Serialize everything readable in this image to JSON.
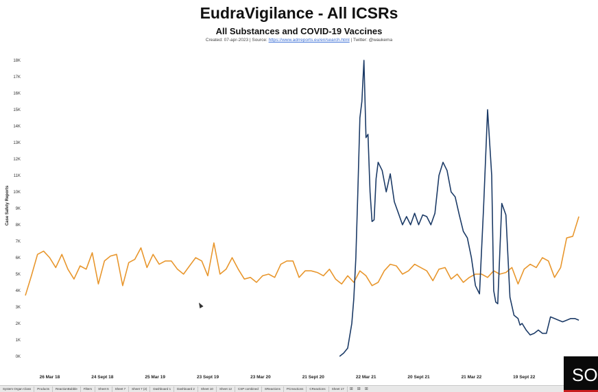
{
  "chart_data": {
    "type": "line",
    "title": "EudraVigilance - All ICSRs",
    "subtitle": "All Substances and COVID-19 Vaccines",
    "credits": {
      "prefix": "Created: 07-apr-2023 | Source: ",
      "link_text": "https://www.adrreports.eu/en/search.html",
      "suffix": " | Twitter: @waukema"
    },
    "ylabel": "Case Safety Reports",
    "xlabel": "",
    "ylim": [
      0,
      18000
    ],
    "y_ticks": [
      {
        "value": 0,
        "label": "0K"
      },
      {
        "value": 1000,
        "label": "1K"
      },
      {
        "value": 2000,
        "label": "2K"
      },
      {
        "value": 3000,
        "label": "3K"
      },
      {
        "value": 4000,
        "label": "4K"
      },
      {
        "value": 5000,
        "label": "5K"
      },
      {
        "value": 6000,
        "label": "6K"
      },
      {
        "value": 7000,
        "label": "7K"
      },
      {
        "value": 8000,
        "label": "8K"
      },
      {
        "value": 9000,
        "label": "9K"
      },
      {
        "value": 10000,
        "label": "10K"
      },
      {
        "value": 11000,
        "label": "11K"
      },
      {
        "value": 12000,
        "label": "12K"
      },
      {
        "value": 13000,
        "label": "13K"
      },
      {
        "value": 14000,
        "label": "14K"
      },
      {
        "value": 15000,
        "label": "15K"
      },
      {
        "value": 16000,
        "label": "16K"
      },
      {
        "value": 17000,
        "label": "17K"
      },
      {
        "value": 18000,
        "label": "18K"
      }
    ],
    "x_range": [
      "2017-12-25",
      "2023-04-10"
    ],
    "x_ticks": [
      {
        "date": "2018-03-26",
        "label": "26 Mar 18"
      },
      {
        "date": "2018-09-24",
        "label": "24 Sept 18"
      },
      {
        "date": "2019-03-25",
        "label": "25 Mar 19"
      },
      {
        "date": "2019-09-23",
        "label": "23 Sept 19"
      },
      {
        "date": "2020-03-23",
        "label": "23 Mar 20"
      },
      {
        "date": "2020-09-21",
        "label": "21 Sept 20"
      },
      {
        "date": "2021-03-22",
        "label": "22 Mar 21"
      },
      {
        "date": "2021-09-20",
        "label": "20 Sept 21"
      },
      {
        "date": "2022-03-21",
        "label": "21 Mar 22"
      },
      {
        "date": "2022-09-19",
        "label": "19 Sept 22"
      }
    ],
    "grid": false,
    "legend": "none",
    "series": [
      {
        "color": "#e8962c",
        "x": [
          "2018-01-01",
          "2018-01-22",
          "2018-02-12",
          "2018-03-05",
          "2018-03-26",
          "2018-04-16",
          "2018-05-07",
          "2018-05-28",
          "2018-06-18",
          "2018-07-09",
          "2018-07-30",
          "2018-08-20",
          "2018-09-10",
          "2018-10-01",
          "2018-10-22",
          "2018-11-12",
          "2018-12-03",
          "2018-12-24",
          "2019-01-14",
          "2019-02-04",
          "2019-02-25",
          "2019-03-18",
          "2019-04-08",
          "2019-04-29",
          "2019-05-20",
          "2019-06-10",
          "2019-07-01",
          "2019-07-22",
          "2019-08-12",
          "2019-09-02",
          "2019-09-23",
          "2019-10-14",
          "2019-11-04",
          "2019-11-25",
          "2019-12-16",
          "2020-01-06",
          "2020-01-27",
          "2020-02-17",
          "2020-03-09",
          "2020-03-30",
          "2020-04-20",
          "2020-05-11",
          "2020-06-01",
          "2020-06-22",
          "2020-07-13",
          "2020-08-03",
          "2020-08-24",
          "2020-09-14",
          "2020-10-05",
          "2020-10-26",
          "2020-11-16",
          "2020-12-07",
          "2020-12-28",
          "2021-01-18",
          "2021-02-08",
          "2021-03-01",
          "2021-03-22",
          "2021-04-12",
          "2021-05-03",
          "2021-05-24",
          "2021-06-14",
          "2021-07-05",
          "2021-07-26",
          "2021-08-16",
          "2021-09-06",
          "2021-09-27",
          "2021-10-18",
          "2021-11-08",
          "2021-11-29",
          "2021-12-20",
          "2022-01-10",
          "2022-01-31",
          "2022-02-21",
          "2022-03-14",
          "2022-04-04",
          "2022-04-25",
          "2022-05-16",
          "2022-06-06",
          "2022-06-27",
          "2022-07-18",
          "2022-08-08",
          "2022-08-29",
          "2022-09-19",
          "2022-10-10",
          "2022-10-31",
          "2022-11-21",
          "2022-12-12",
          "2023-01-02",
          "2023-01-23",
          "2023-02-13",
          "2023-03-06",
          "2023-03-27"
        ],
        "values": [
          3700,
          4900,
          6200,
          6400,
          6000,
          5400,
          6200,
          5300,
          4700,
          5500,
          5300,
          6300,
          4400,
          5800,
          6100,
          6200,
          4300,
          5700,
          5900,
          6600,
          5400,
          6200,
          5600,
          5800,
          5800,
          5300,
          5000,
          5500,
          6000,
          5800,
          4900,
          6900,
          5000,
          5300,
          6000,
          5300,
          4700,
          4800,
          4500,
          4900,
          5000,
          4800,
          5600,
          5800,
          5800,
          4800,
          5200,
          5200,
          5100,
          4900,
          5300,
          4700,
          4400,
          4900,
          4500,
          5200,
          4900,
          4300,
          4500,
          5200,
          5600,
          5500,
          5000,
          5200,
          5600,
          5400,
          5200,
          4600,
          5300,
          5400,
          4700,
          5000,
          4500,
          4800,
          5000,
          5000,
          4800,
          5200,
          5000,
          5100,
          5400,
          4400,
          5300,
          5600,
          5400,
          6000,
          5800,
          4800,
          5400,
          7200,
          7300,
          8500
        ]
      },
      {
        "color": "#1b3a66",
        "x": [
          "2020-12-21",
          "2021-01-04",
          "2021-01-18",
          "2021-02-01",
          "2021-02-08",
          "2021-02-15",
          "2021-02-22",
          "2021-03-01",
          "2021-03-08",
          "2021-03-15",
          "2021-03-22",
          "2021-03-29",
          "2021-04-05",
          "2021-04-12",
          "2021-04-19",
          "2021-04-26",
          "2021-05-03",
          "2021-05-17",
          "2021-05-31",
          "2021-06-14",
          "2021-06-28",
          "2021-07-12",
          "2021-07-26",
          "2021-08-09",
          "2021-08-23",
          "2021-09-06",
          "2021-09-20",
          "2021-10-04",
          "2021-10-18",
          "2021-11-01",
          "2021-11-15",
          "2021-11-29",
          "2021-12-13",
          "2021-12-27",
          "2022-01-10",
          "2022-01-24",
          "2022-02-07",
          "2022-02-21",
          "2022-03-07",
          "2022-03-21",
          "2022-04-04",
          "2022-04-18",
          "2022-05-02",
          "2022-05-16",
          "2022-05-30",
          "2022-06-06",
          "2022-06-13",
          "2022-06-20",
          "2022-07-04",
          "2022-07-18",
          "2022-08-01",
          "2022-08-15",
          "2022-08-29",
          "2022-09-05",
          "2022-09-12",
          "2022-09-26",
          "2022-10-10",
          "2022-10-24",
          "2022-11-07",
          "2022-11-21",
          "2022-12-05",
          "2022-12-19",
          "2023-01-02",
          "2023-01-16",
          "2023-01-30",
          "2023-02-13",
          "2023-02-27",
          "2023-03-13",
          "2023-03-27"
        ],
        "values": [
          0,
          200,
          500,
          2000,
          3500,
          6000,
          10000,
          14500,
          15500,
          18000,
          13300,
          13500,
          10000,
          8200,
          8300,
          10800,
          11800,
          11300,
          10000,
          11100,
          9400,
          8700,
          8000,
          8500,
          8000,
          8700,
          8000,
          8600,
          8500,
          8000,
          8700,
          11000,
          11800,
          11300,
          10000,
          9700,
          8600,
          7600,
          7200,
          6000,
          4300,
          3800,
          9000,
          15000,
          11000,
          4000,
          3300,
          3200,
          9300,
          8600,
          3600,
          2500,
          2300,
          1900,
          2000,
          1600,
          1300,
          1400,
          1600,
          1400,
          1400,
          2400,
          2300,
          2200,
          2100,
          2200,
          2300,
          2300,
          2200
        ]
      }
    ]
  },
  "tabs": [
    "System Organ Class",
    "Products",
    "ReactionBubble",
    "Filters",
    "Sheet 6",
    "Sheet 7",
    "Sheet 7 (2)",
    "Dashboard 1",
    "Dashboard 2",
    "Sheet 10",
    "Sheet 12",
    "CSP combined",
    "SReactions",
    "PCreactions",
    "CReactions",
    "Sheet 17"
  ],
  "badge_text": "SO"
}
